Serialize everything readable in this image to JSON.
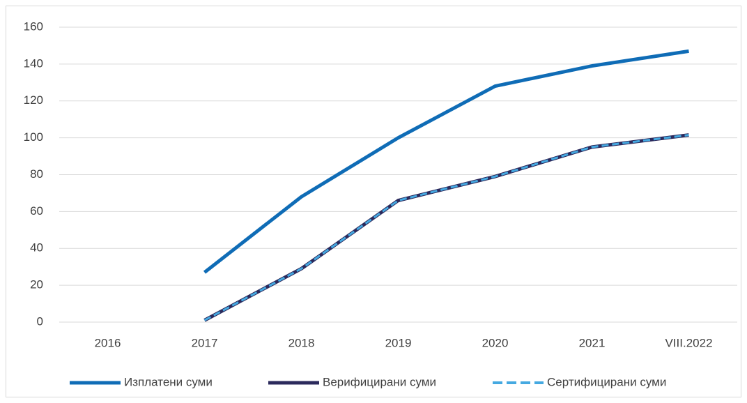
{
  "chart_data": {
    "type": "line",
    "categories": [
      "2016",
      "2017",
      "2018",
      "2019",
      "2020",
      "2021",
      "VIII.2022"
    ],
    "series": [
      {
        "name": "Изплатени суми",
        "color": "#0f6cb6",
        "values": [
          null,
          27,
          68,
          100,
          128,
          139,
          147
        ]
      },
      {
        "name": "Верифицирани суми",
        "color": "#2b2a5c",
        "values": [
          null,
          1,
          29,
          66,
          79,
          95,
          101.5
        ]
      },
      {
        "name": "Сертифицирани суми",
        "color": "#45a9e1",
        "dashed": true,
        "values": [
          null,
          1,
          29,
          66,
          79,
          95,
          101.5
        ]
      }
    ],
    "ylim": [
      0,
      160
    ],
    "yticks": [
      0,
      20,
      40,
      60,
      80,
      100,
      120,
      140,
      160
    ],
    "grid": true,
    "legend": "bottom"
  }
}
